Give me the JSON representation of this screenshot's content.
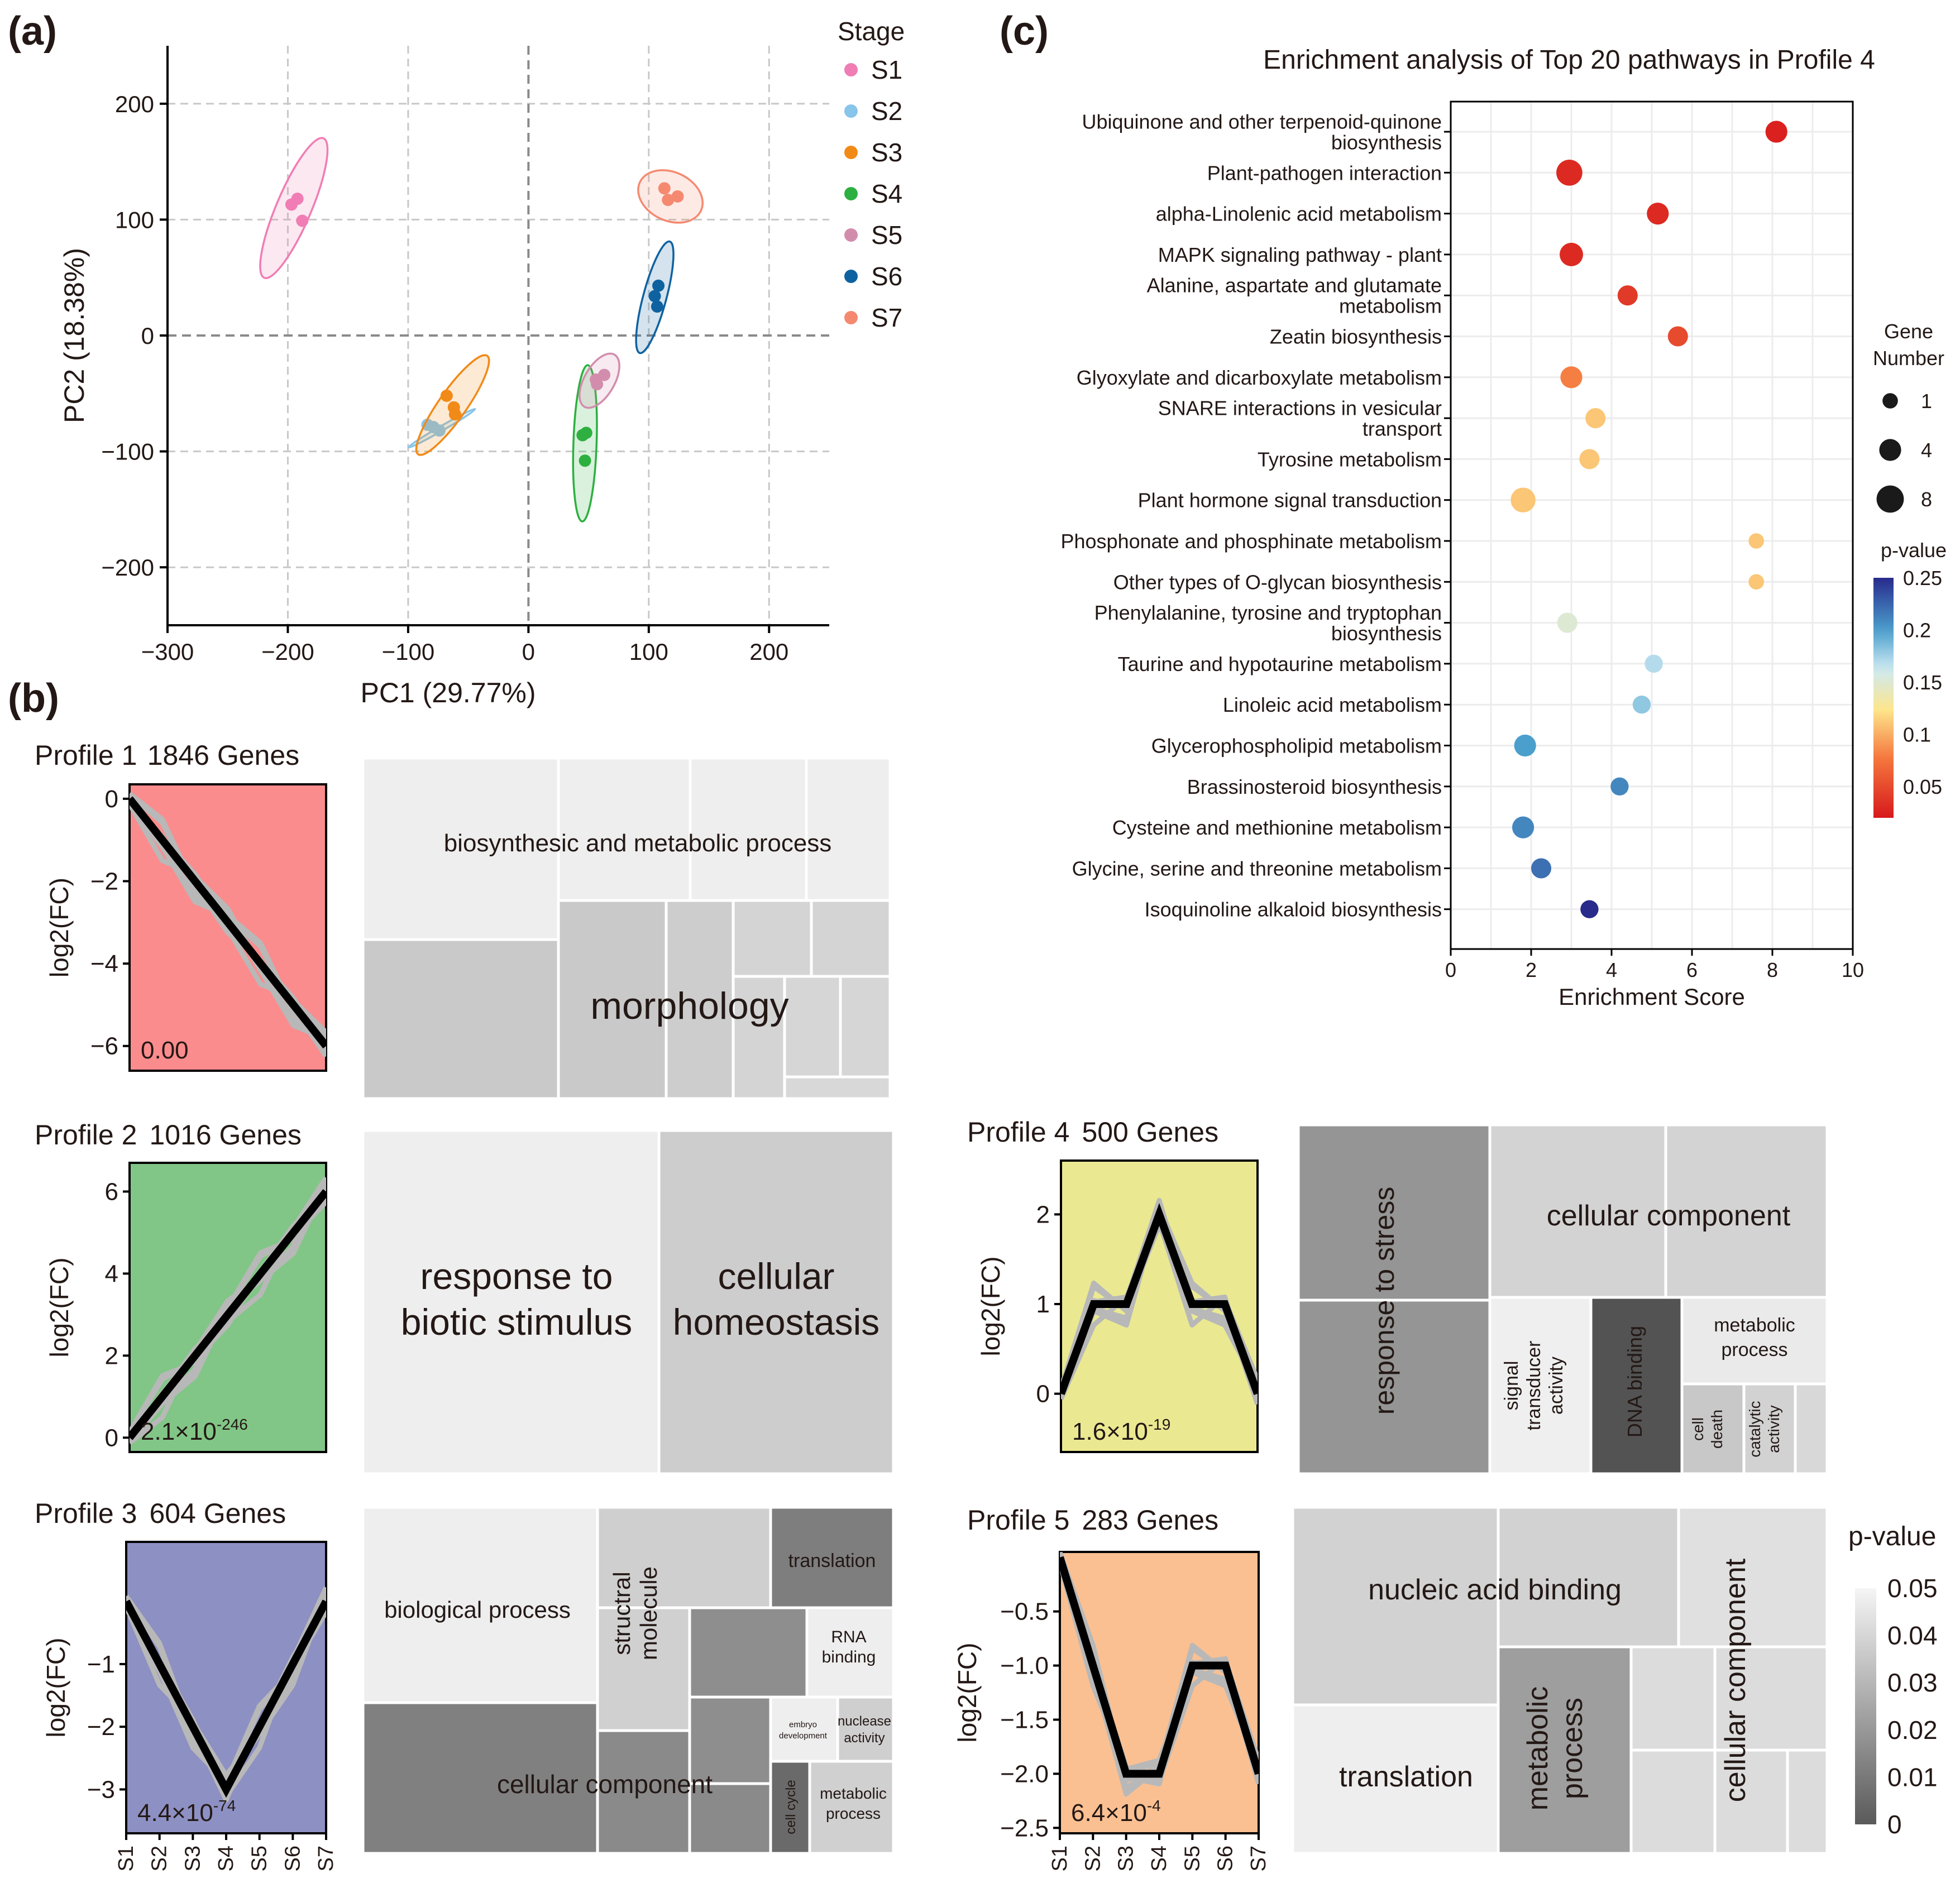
{
  "panels": {
    "a": "(a)",
    "b": "(b)",
    "c": "(c)"
  },
  "chart_data": [
    {
      "id": "a",
      "type": "scatter",
      "xlabel": "PC1 (29.77%)",
      "ylabel": "PC2 (18.38%)",
      "xlim": [
        -300,
        250
      ],
      "ylim": [
        -250,
        250
      ],
      "xticks": [
        -300,
        -200,
        -100,
        0,
        100,
        200
      ],
      "yticks": [
        -200,
        -100,
        0,
        100,
        200
      ],
      "tick_labels": {
        "-300": "−300",
        "-200": "−200",
        "-100": "−100",
        "0": "0",
        "100": "100",
        "200": "200"
      },
      "legend_title": "Stage",
      "legend_position": "right",
      "series": [
        {
          "name": "S1",
          "color": "#F07DB4",
          "points": [
            [
              -197,
              113
            ],
            [
              -192,
              118
            ],
            [
              -188,
              99
            ]
          ],
          "ellipse": {
            "cx": -195,
            "cy": 110,
            "rx": 63,
            "ry": 15,
            "angle": -67
          }
        },
        {
          "name": "S2",
          "color": "#88C5EA",
          "points": [
            [
              -84,
              -77
            ],
            [
              -79,
              -79
            ],
            [
              -74,
              -82
            ]
          ],
          "ellipse": {
            "cx": -72,
            "cy": -80,
            "rx": 32,
            "ry": 2,
            "angle": -30
          }
        },
        {
          "name": "S3",
          "color": "#F28A18",
          "points": [
            [
              -68,
              -52
            ],
            [
              -62,
              -62
            ],
            [
              -61,
              -68
            ]
          ],
          "ellipse": {
            "cx": -63,
            "cy": -60,
            "rx": 50,
            "ry": 12,
            "angle": -55
          }
        },
        {
          "name": "S4",
          "color": "#2DB040",
          "points": [
            [
              45,
              -86
            ],
            [
              48,
              -84
            ],
            [
              47,
              -108
            ]
          ],
          "ellipse": {
            "cx": 47,
            "cy": -93,
            "rx": 65,
            "ry": 10,
            "angle": -88
          }
        },
        {
          "name": "S5",
          "color": "#D28DAD",
          "points": [
            [
              56,
              -38
            ],
            [
              63,
              -34
            ],
            [
              57,
              -42
            ]
          ],
          "ellipse": {
            "cx": 59,
            "cy": -39,
            "rx": 25,
            "ry": 13,
            "angle": -60
          }
        },
        {
          "name": "S6",
          "color": "#0F62A0",
          "points": [
            [
              108,
              43
            ],
            [
              105,
              34
            ],
            [
              107,
              25
            ]
          ],
          "ellipse": {
            "cx": 105,
            "cy": 33,
            "rx": 48,
            "ry": 10,
            "angle": -75
          }
        },
        {
          "name": "S7",
          "color": "#F58970",
          "points": [
            [
              113,
              127
            ],
            [
              116,
              117
            ],
            [
              124,
              120
            ]
          ],
          "ellipse": {
            "cx": 118,
            "cy": 120,
            "rx": 28,
            "ry": 21,
            "angle": 25
          }
        }
      ]
    },
    {
      "id": "c",
      "type": "scatter",
      "title": "Enrichment analysis of Top 20 pathways in Profile 4",
      "xlabel": "Enrichment Score",
      "xlim": [
        0,
        10
      ],
      "xticks": [
        0,
        2,
        4,
        6,
        8,
        10
      ],
      "size_legend_title": [
        "Gene",
        "Number"
      ],
      "size_legend": [
        1,
        4,
        8
      ],
      "color_legend_title": "p-value",
      "color_legend_range": [
        0.02,
        0.25
      ],
      "color_legend_ticks": [
        0.25,
        0.2,
        0.15,
        0.1,
        0.05
      ],
      "color_legend_tick_labels": [
        "0.25",
        "0.2",
        "0.15",
        "0.1",
        "0.05"
      ],
      "categories": [
        [
          "Ubiquinone and other terpenoid-quinone",
          "biosynthesis"
        ],
        [
          "Plant-pathogen interaction"
        ],
        [
          "alpha-Linolenic acid metabolism"
        ],
        [
          "MAPK signaling pathway - plant"
        ],
        [
          "Alanine, aspartate and glutamate",
          "metabolism"
        ],
        [
          "Zeatin biosynthesis"
        ],
        [
          "Glyoxylate and dicarboxylate metabolism"
        ],
        [
          "SNARE interactions in vesicular",
          "transport"
        ],
        [
          "Tyrosine metabolism"
        ],
        [
          "Plant hormone signal transduction"
        ],
        [
          "Phosphonate and phosphinate metabolism"
        ],
        [
          "Other types of O-glycan biosynthesis"
        ],
        [
          "Phenylalanine, tyrosine and tryptophan",
          "biosynthesis"
        ],
        [
          "Taurine and hypotaurine metabolism"
        ],
        [
          "Linoleic acid metabolism"
        ],
        [
          "Glycerophospholipid metabolism"
        ],
        [
          "Brassinosteroid biosynthesis"
        ],
        [
          "Cysteine and methionine metabolism"
        ],
        [
          "Glycine, serine and threonine metabolism"
        ],
        [
          "Isoquinoline alkaloid biosynthesis"
        ]
      ],
      "enrichment": [
        8.1,
        2.95,
        5.15,
        3.0,
        4.4,
        5.65,
        3.0,
        3.6,
        3.45,
        1.8,
        7.6,
        7.6,
        2.9,
        5.05,
        4.75,
        1.85,
        4.2,
        1.8,
        2.25,
        3.45
      ],
      "gene_number": [
        4,
        7,
        4,
        5,
        3,
        3,
        4,
        3,
        3,
        6,
        1,
        1,
        3,
        2,
        2,
        4,
        2,
        4,
        3,
        2
      ],
      "p_value": [
        0.025,
        0.03,
        0.03,
        0.03,
        0.04,
        0.05,
        0.08,
        0.11,
        0.11,
        0.11,
        0.11,
        0.11,
        0.15,
        0.17,
        0.18,
        0.2,
        0.21,
        0.21,
        0.22,
        0.25
      ]
    },
    {
      "id": "b",
      "type": "line",
      "subtype": "trend-profiles",
      "x": [
        "S1",
        "S2",
        "S3",
        "S4",
        "S5",
        "S6",
        "S7"
      ],
      "profiles": [
        {
          "key": "p1",
          "title": "Profile 1",
          "count": "1846 Genes",
          "values": [
            0,
            -1,
            -2,
            -3,
            -4,
            -5,
            -6
          ],
          "ylim": [
            -6.6,
            0.35
          ],
          "yticks": [
            0,
            -2,
            -4,
            -6
          ],
          "ytick_labels": [
            "0",
            "−2",
            "−4",
            "−6"
          ],
          "color": "#FA8C8D",
          "pval": {
            "base": "0.00",
            "exp": ""
          },
          "ylabel": "log2(FC)",
          "show_xticks": false
        },
        {
          "key": "p2",
          "title": "Profile 2",
          "count": "1016 Genes",
          "values": [
            0,
            1,
            2,
            3,
            4,
            5,
            6
          ],
          "ylim": [
            -0.35,
            6.7
          ],
          "yticks": [
            6,
            4,
            2,
            0
          ],
          "ytick_labels": [
            "6",
            "4",
            "2",
            "0"
          ],
          "color": "#82C687",
          "pval": {
            "base": "2.1×10",
            "exp": "-246"
          },
          "ylabel": "log2(FC)",
          "show_xticks": false
        },
        {
          "key": "p3",
          "title": "Profile 3",
          "count": "604 Genes",
          "values": [
            0,
            -1,
            -2,
            -3,
            -2,
            -1,
            0
          ],
          "ylim": [
            -3.7,
            0.95
          ],
          "yticks": [
            -1,
            -2,
            -3
          ],
          "ytick_labels": [
            "−1",
            "−2",
            "−3"
          ],
          "color": "#8D90C3",
          "pval": {
            "base": "4.4×10",
            "exp": "-74"
          },
          "ylabel": "log2(FC)",
          "show_xticks": true
        },
        {
          "key": "p4",
          "title": "Profile 4",
          "count": "500 Genes",
          "values": [
            0,
            1,
            1,
            2,
            1,
            1,
            0
          ],
          "ylim": [
            -0.65,
            2.6
          ],
          "yticks": [
            2,
            1,
            0
          ],
          "ytick_labels": [
            "2",
            "1",
            "0"
          ],
          "color": "#EAE992",
          "pval": {
            "base": "1.6×10",
            "exp": "-19"
          },
          "ylabel": "log2(FC)",
          "show_xticks": false
        },
        {
          "key": "p5",
          "title": "Profile 5",
          "count": "283 Genes",
          "values": [
            0,
            -1,
            -2,
            -2,
            -1,
            -1,
            -2
          ],
          "ylim": [
            -2.55,
            0.05
          ],
          "yticks": [
            -0.5,
            -1.0,
            -1.5,
            -2.0,
            -2.5
          ],
          "ytick_labels": [
            "−0.5",
            "−1.0",
            "−1.5",
            "−2.0",
            "−2.5"
          ],
          "color": "#FAC092",
          "pval": {
            "base": "6.4×10",
            "exp": "-4"
          },
          "ylabel": "log2(FC)",
          "show_xticks": true
        }
      ],
      "treemap_labels": {
        "p1_big": "biosynthesic and metabolic process",
        "p1_morph": "morphology",
        "p2_left": [
          "response to",
          "biotic stimulus"
        ],
        "p2_right": [
          "cellular",
          "homeostasis"
        ],
        "p3_bio": "biological process",
        "p3_struct": [
          "structral",
          "molecule"
        ],
        "p3_trans": "translation",
        "p3_rna": [
          "RNA",
          "binding"
        ],
        "p3_cc": "cellular component",
        "p3_embryo": [
          "embryo",
          "development"
        ],
        "p3_nuclease": [
          "nuclease",
          "activity"
        ],
        "p3_cycle": "cell cycle",
        "p3_meta": [
          "metabolic",
          "process"
        ],
        "p4_stress": "response to stress",
        "p4_cc": "cellular component",
        "p4_signal": [
          "signal",
          "transducer",
          "activity"
        ],
        "p4_dna": "DNA binding",
        "p4_meta": [
          "metabolic",
          "process"
        ],
        "p4_death": [
          "cell",
          "death"
        ],
        "p4_cat": [
          "catalytic",
          "activity"
        ],
        "p5_nab": "nucleic acid binding",
        "p5_trans": "translation",
        "p5_meta": [
          "metabolic",
          "process"
        ],
        "p5_cc": "cellular component"
      },
      "gray_legend_title": "p-value",
      "gray_legend_ticks": [
        0.05,
        0.04,
        0.03,
        0.02,
        0.01,
        0
      ],
      "gray_legend_tick_labels": [
        "0.05",
        "0.04",
        "0.03",
        "0.02",
        "0.01",
        "0"
      ]
    }
  ]
}
